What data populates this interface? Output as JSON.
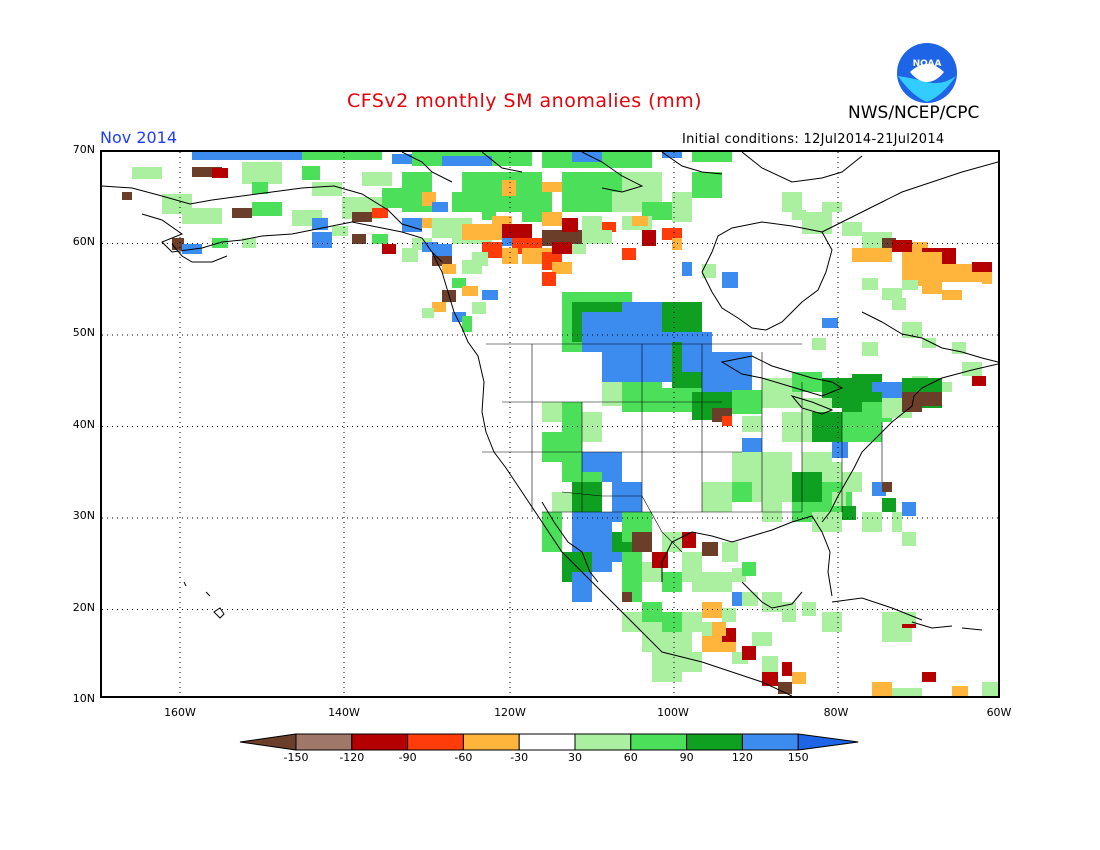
{
  "header": {
    "title": "CFSv2 monthly SM anomalies (mm)",
    "organization": "NWS/NCEP/CPC",
    "valid_month": "Nov 2014",
    "initial_conditions": "Initial conditions: 12Jul2014-21Jul2014",
    "logo_text": "NOAA"
  },
  "axes": {
    "lat_labels": [
      "70N",
      "60N",
      "50N",
      "40N",
      "30N",
      "20N",
      "10N"
    ],
    "lon_labels": [
      "160W",
      "140W",
      "120W",
      "100W",
      "80W",
      "60W"
    ]
  },
  "colorbar": {
    "colors": [
      "#6b3e2a",
      "#a0786a",
      "#b40000",
      "#ff3c0a",
      "#ffb43c",
      "#ffffff",
      "#aaf0a0",
      "#4ce05a",
      "#0fa022",
      "#3c8cf0",
      "#1e64e6"
    ],
    "labels": [
      "-150",
      "-120",
      "-90",
      "-60",
      "-30",
      "30",
      "60",
      "90",
      "120",
      "150"
    ]
  },
  "legend_colors": {
    "coast": "#000000",
    "grid": "#000000"
  }
}
